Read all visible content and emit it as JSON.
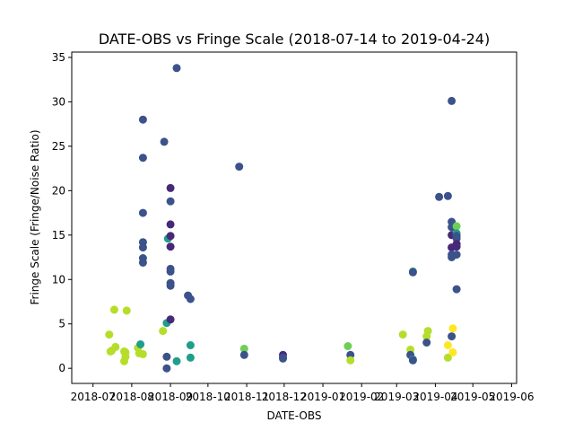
{
  "chart_data": {
    "type": "scatter",
    "title": "DATE-OBS vs Fringe Scale (2018-07-14 to 2019-04-24)",
    "xlabel": "DATE-OBS",
    "ylabel": "Fringe Scale (Fringe/Noise Ratio)",
    "x_is_date": true,
    "xlim": [
      "2018-06-14",
      "2019-06-05"
    ],
    "ylim": [
      -1.7,
      35.6
    ],
    "x_ticks": [
      {
        "date": "2018-07-01",
        "label": "2018-07"
      },
      {
        "date": "2018-08-01",
        "label": "2018-08"
      },
      {
        "date": "2018-09-01",
        "label": "2018-09"
      },
      {
        "date": "2018-10-01",
        "label": "2018-10"
      },
      {
        "date": "2018-11-01",
        "label": "2018-11"
      },
      {
        "date": "2018-12-01",
        "label": "2018-12"
      },
      {
        "date": "2019-01-01",
        "label": "2019-01"
      },
      {
        "date": "2019-02-01",
        "label": "2019-02"
      },
      {
        "date": "2019-03-01",
        "label": "2019-03"
      },
      {
        "date": "2019-04-01",
        "label": "2019-04"
      },
      {
        "date": "2019-05-01",
        "label": "2019-05"
      },
      {
        "date": "2019-06-01",
        "label": "2019-06"
      }
    ],
    "y_ticks": [
      0,
      5,
      10,
      15,
      20,
      25,
      30,
      35
    ],
    "grid": false,
    "legend": "none",
    "colormap": "viridis",
    "points": [
      {
        "x": "2018-07-14",
        "y": 3.8,
        "color": "#b5de2b"
      },
      {
        "x": "2018-07-15",
        "y": 1.9,
        "color": "#b5de2b"
      },
      {
        "x": "2018-07-16",
        "y": 2.0,
        "color": "#b5de2b"
      },
      {
        "x": "2018-07-18",
        "y": 6.6,
        "color": "#b5de2b"
      },
      {
        "x": "2018-07-19",
        "y": 2.4,
        "color": "#b5de2b"
      },
      {
        "x": "2018-07-26",
        "y": 1.9,
        "color": "#b5de2b"
      },
      {
        "x": "2018-07-27",
        "y": 1.8,
        "color": "#b5de2b"
      },
      {
        "x": "2018-07-26",
        "y": 0.8,
        "color": "#b5de2b"
      },
      {
        "x": "2018-07-27",
        "y": 1.3,
        "color": "#b5de2b"
      },
      {
        "x": "2018-07-28",
        "y": 6.5,
        "color": "#b5de2b"
      },
      {
        "x": "2018-08-06",
        "y": 2.3,
        "color": "#b5de2b"
      },
      {
        "x": "2018-08-07",
        "y": 1.7,
        "color": "#b5de2b"
      },
      {
        "x": "2018-08-08",
        "y": 2.7,
        "color": "#1f9e89"
      },
      {
        "x": "2018-08-10",
        "y": 1.6,
        "color": "#b5de2b"
      },
      {
        "x": "2018-08-10",
        "y": 28.0,
        "color": "#3b528b"
      },
      {
        "x": "2018-08-10",
        "y": 23.7,
        "color": "#3b528b"
      },
      {
        "x": "2018-08-10",
        "y": 17.5,
        "color": "#3b528b"
      },
      {
        "x": "2018-08-10",
        "y": 14.2,
        "color": "#3b528b"
      },
      {
        "x": "2018-08-10",
        "y": 13.6,
        "color": "#3b528b"
      },
      {
        "x": "2018-08-10",
        "y": 12.4,
        "color": "#3b528b"
      },
      {
        "x": "2018-08-10",
        "y": 11.9,
        "color": "#3b528b"
      },
      {
        "x": "2018-08-26",
        "y": 4.2,
        "color": "#b5de2b"
      },
      {
        "x": "2018-08-27",
        "y": 25.5,
        "color": "#3b528b"
      },
      {
        "x": "2018-08-29",
        "y": 5.1,
        "color": "#1f9e89"
      },
      {
        "x": "2018-08-29",
        "y": 1.3,
        "color": "#3b528b"
      },
      {
        "x": "2018-08-29",
        "y": 0.0,
        "color": "#3b528b"
      },
      {
        "x": "2018-08-30",
        "y": 14.6,
        "color": "#1f9e89"
      },
      {
        "x": "2018-09-01",
        "y": 20.3,
        "color": "#482878"
      },
      {
        "x": "2018-09-01",
        "y": 18.8,
        "color": "#3b528b"
      },
      {
        "x": "2018-09-01",
        "y": 16.2,
        "color": "#482878"
      },
      {
        "x": "2018-09-01",
        "y": 14.9,
        "color": "#482878"
      },
      {
        "x": "2018-09-01",
        "y": 13.7,
        "color": "#482878"
      },
      {
        "x": "2018-09-01",
        "y": 11.2,
        "color": "#3b528b"
      },
      {
        "x": "2018-09-01",
        "y": 10.9,
        "color": "#3b528b"
      },
      {
        "x": "2018-09-01",
        "y": 9.6,
        "color": "#3b528b"
      },
      {
        "x": "2018-09-01",
        "y": 9.3,
        "color": "#3b528b"
      },
      {
        "x": "2018-09-01",
        "y": 5.5,
        "color": "#482878"
      },
      {
        "x": "2018-09-06",
        "y": 33.8,
        "color": "#3b528b"
      },
      {
        "x": "2018-09-06",
        "y": 0.8,
        "color": "#1f9e89"
      },
      {
        "x": "2018-09-15",
        "y": 8.2,
        "color": "#3b528b"
      },
      {
        "x": "2018-09-17",
        "y": 7.8,
        "color": "#3b528b"
      },
      {
        "x": "2018-09-17",
        "y": 2.6,
        "color": "#1f9e89"
      },
      {
        "x": "2018-09-17",
        "y": 1.2,
        "color": "#1f9e89"
      },
      {
        "x": "2018-10-26",
        "y": 22.7,
        "color": "#3b528b"
      },
      {
        "x": "2018-10-30",
        "y": 2.2,
        "color": "#6ece58"
      },
      {
        "x": "2018-10-30",
        "y": 1.5,
        "color": "#3b528b"
      },
      {
        "x": "2018-11-30",
        "y": 1.5,
        "color": "#482878"
      },
      {
        "x": "2018-11-30",
        "y": 1.2,
        "color": "#3b528b"
      },
      {
        "x": "2018-11-30",
        "y": 1.1,
        "color": "#3b528b"
      },
      {
        "x": "2019-01-21",
        "y": 2.5,
        "color": "#6ece58"
      },
      {
        "x": "2019-01-23",
        "y": 1.5,
        "color": "#3b528b"
      },
      {
        "x": "2019-01-23",
        "y": 0.9,
        "color": "#b5de2b"
      },
      {
        "x": "2019-03-06",
        "y": 3.8,
        "color": "#b5de2b"
      },
      {
        "x": "2019-03-12",
        "y": 2.1,
        "color": "#b5de2b"
      },
      {
        "x": "2019-03-12",
        "y": 1.5,
        "color": "#3b528b"
      },
      {
        "x": "2019-03-14",
        "y": 10.9,
        "color": "#1f9e89"
      },
      {
        "x": "2019-03-14",
        "y": 10.8,
        "color": "#3b528b"
      },
      {
        "x": "2019-03-14",
        "y": 1.0,
        "color": "#1f9e89"
      },
      {
        "x": "2019-03-14",
        "y": 0.9,
        "color": "#3b528b"
      },
      {
        "x": "2019-03-25",
        "y": 3.6,
        "color": "#b5de2b"
      },
      {
        "x": "2019-03-26",
        "y": 4.2,
        "color": "#b5de2b"
      },
      {
        "x": "2019-03-25",
        "y": 2.9,
        "color": "#3b528b"
      },
      {
        "x": "2019-04-04",
        "y": 19.3,
        "color": "#3b528b"
      },
      {
        "x": "2019-04-11",
        "y": 19.4,
        "color": "#3b528b"
      },
      {
        "x": "2019-04-11",
        "y": 2.6,
        "color": "#fde725"
      },
      {
        "x": "2019-04-11",
        "y": 1.2,
        "color": "#b5de2b"
      },
      {
        "x": "2019-04-14",
        "y": 30.1,
        "color": "#3b528b"
      },
      {
        "x": "2019-04-14",
        "y": 16.5,
        "color": "#3b528b"
      },
      {
        "x": "2019-04-14",
        "y": 15.9,
        "color": "#3b528b"
      },
      {
        "x": "2019-04-14",
        "y": 15.0,
        "color": "#482878"
      },
      {
        "x": "2019-04-14",
        "y": 13.6,
        "color": "#482878"
      },
      {
        "x": "2019-04-14",
        "y": 12.8,
        "color": "#3b528b"
      },
      {
        "x": "2019-04-14",
        "y": 12.5,
        "color": "#3b528b"
      },
      {
        "x": "2019-04-14",
        "y": 3.6,
        "color": "#3b528b"
      },
      {
        "x": "2019-04-15",
        "y": 4.5,
        "color": "#fde725"
      },
      {
        "x": "2019-04-15",
        "y": 1.8,
        "color": "#fde725"
      },
      {
        "x": "2019-04-18",
        "y": 16.0,
        "color": "#6ece58"
      },
      {
        "x": "2019-04-18",
        "y": 15.2,
        "color": "#1f9e89"
      },
      {
        "x": "2019-04-18",
        "y": 14.9,
        "color": "#3b528b"
      },
      {
        "x": "2019-04-18",
        "y": 14.6,
        "color": "#3b528b"
      },
      {
        "x": "2019-04-18",
        "y": 14.0,
        "color": "#482878"
      },
      {
        "x": "2019-04-18",
        "y": 13.7,
        "color": "#482878"
      },
      {
        "x": "2019-04-18",
        "y": 12.8,
        "color": "#3b528b"
      },
      {
        "x": "2019-04-18",
        "y": 8.9,
        "color": "#3b528b"
      }
    ]
  }
}
